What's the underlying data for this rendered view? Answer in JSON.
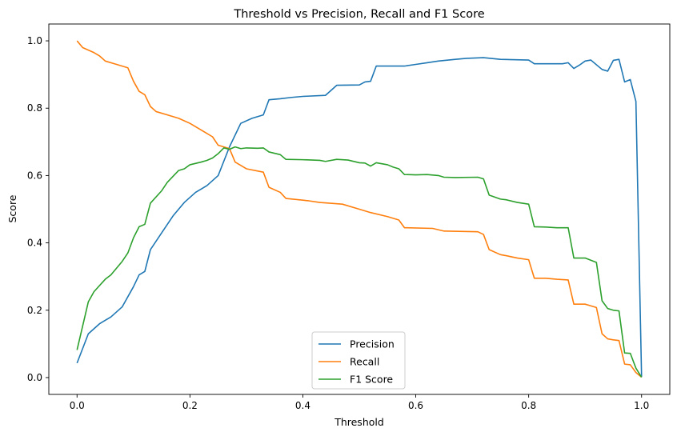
{
  "chart_data": {
    "type": "line",
    "title": "Threshold vs Precision, Recall and F1 Score",
    "xlabel": "Threshold",
    "ylabel": "Score",
    "xlim": [
      -0.05,
      1.05
    ],
    "ylim": [
      -0.05,
      1.05
    ],
    "xticks": [
      0.0,
      0.2,
      0.4,
      0.6,
      0.8,
      1.0
    ],
    "xtick_labels": [
      "0.0",
      "0.2",
      "0.4",
      "0.6",
      "0.8",
      "1.0"
    ],
    "yticks": [
      0.0,
      0.2,
      0.4,
      0.6,
      0.8,
      1.0
    ],
    "ytick_labels": [
      "0.0",
      "0.2",
      "0.4",
      "0.6",
      "0.8",
      "1.0"
    ],
    "grid": false,
    "legend_position": "lower-center",
    "series": [
      {
        "name": "Precision",
        "color": "#1f77b4",
        "points": [
          [
            0.0,
            0.043
          ],
          [
            0.02,
            0.13
          ],
          [
            0.04,
            0.16
          ],
          [
            0.06,
            0.18
          ],
          [
            0.08,
            0.21
          ],
          [
            0.1,
            0.27
          ],
          [
            0.11,
            0.305
          ],
          [
            0.12,
            0.315
          ],
          [
            0.13,
            0.38
          ],
          [
            0.15,
            0.43
          ],
          [
            0.17,
            0.48
          ],
          [
            0.19,
            0.52
          ],
          [
            0.21,
            0.55
          ],
          [
            0.23,
            0.57
          ],
          [
            0.25,
            0.6
          ],
          [
            0.27,
            0.685
          ],
          [
            0.29,
            0.755
          ],
          [
            0.31,
            0.77
          ],
          [
            0.33,
            0.78
          ],
          [
            0.34,
            0.825
          ],
          [
            0.36,
            0.828
          ],
          [
            0.38,
            0.832
          ],
          [
            0.4,
            0.835
          ],
          [
            0.44,
            0.838
          ],
          [
            0.46,
            0.868
          ],
          [
            0.5,
            0.869
          ],
          [
            0.51,
            0.878
          ],
          [
            0.52,
            0.88
          ],
          [
            0.53,
            0.925
          ],
          [
            0.58,
            0.925
          ],
          [
            0.6,
            0.93
          ],
          [
            0.62,
            0.935
          ],
          [
            0.64,
            0.94
          ],
          [
            0.67,
            0.945
          ],
          [
            0.69,
            0.948
          ],
          [
            0.72,
            0.95
          ],
          [
            0.75,
            0.945
          ],
          [
            0.8,
            0.943
          ],
          [
            0.81,
            0.932
          ],
          [
            0.86,
            0.932
          ],
          [
            0.87,
            0.935
          ],
          [
            0.88,
            0.918
          ],
          [
            0.89,
            0.928
          ],
          [
            0.9,
            0.94
          ],
          [
            0.91,
            0.943
          ],
          [
            0.93,
            0.915
          ],
          [
            0.94,
            0.91
          ],
          [
            0.95,
            0.942
          ],
          [
            0.96,
            0.945
          ],
          [
            0.97,
            0.878
          ],
          [
            0.98,
            0.885
          ],
          [
            0.99,
            0.82
          ],
          [
            1.0,
            0.002
          ]
        ]
      },
      {
        "name": "Recall",
        "color": "#ff7f0e",
        "points": [
          [
            0.0,
            1.0
          ],
          [
            0.01,
            0.98
          ],
          [
            0.03,
            0.965
          ],
          [
            0.04,
            0.955
          ],
          [
            0.05,
            0.94
          ],
          [
            0.07,
            0.93
          ],
          [
            0.09,
            0.92
          ],
          [
            0.1,
            0.88
          ],
          [
            0.11,
            0.85
          ],
          [
            0.12,
            0.84
          ],
          [
            0.13,
            0.805
          ],
          [
            0.14,
            0.79
          ],
          [
            0.16,
            0.78
          ],
          [
            0.18,
            0.77
          ],
          [
            0.2,
            0.755
          ],
          [
            0.22,
            0.735
          ],
          [
            0.24,
            0.715
          ],
          [
            0.25,
            0.69
          ],
          [
            0.27,
            0.68
          ],
          [
            0.28,
            0.64
          ],
          [
            0.3,
            0.62
          ],
          [
            0.33,
            0.61
          ],
          [
            0.34,
            0.565
          ],
          [
            0.36,
            0.55
          ],
          [
            0.37,
            0.532
          ],
          [
            0.41,
            0.525
          ],
          [
            0.43,
            0.52
          ],
          [
            0.47,
            0.515
          ],
          [
            0.5,
            0.5
          ],
          [
            0.52,
            0.49
          ],
          [
            0.55,
            0.478
          ],
          [
            0.57,
            0.468
          ],
          [
            0.58,
            0.445
          ],
          [
            0.63,
            0.443
          ],
          [
            0.65,
            0.435
          ],
          [
            0.71,
            0.433
          ],
          [
            0.72,
            0.425
          ],
          [
            0.73,
            0.38
          ],
          [
            0.75,
            0.365
          ],
          [
            0.76,
            0.362
          ],
          [
            0.78,
            0.355
          ],
          [
            0.8,
            0.35
          ],
          [
            0.81,
            0.295
          ],
          [
            0.83,
            0.295
          ],
          [
            0.85,
            0.292
          ],
          [
            0.87,
            0.29
          ],
          [
            0.88,
            0.218
          ],
          [
            0.9,
            0.218
          ],
          [
            0.92,
            0.208
          ],
          [
            0.93,
            0.13
          ],
          [
            0.94,
            0.115
          ],
          [
            0.95,
            0.112
          ],
          [
            0.96,
            0.11
          ],
          [
            0.97,
            0.04
          ],
          [
            0.98,
            0.038
          ],
          [
            0.99,
            0.015
          ],
          [
            1.0,
            0.001
          ]
        ]
      },
      {
        "name": "F1 Score",
        "color": "#2ca02c",
        "points": [
          [
            0.0,
            0.082
          ],
          [
            0.02,
            0.225
          ],
          [
            0.03,
            0.255
          ],
          [
            0.05,
            0.292
          ],
          [
            0.06,
            0.305
          ],
          [
            0.08,
            0.345
          ],
          [
            0.09,
            0.37
          ],
          [
            0.1,
            0.415
          ],
          [
            0.11,
            0.448
          ],
          [
            0.12,
            0.455
          ],
          [
            0.13,
            0.518
          ],
          [
            0.15,
            0.555
          ],
          [
            0.16,
            0.58
          ],
          [
            0.18,
            0.615
          ],
          [
            0.19,
            0.62
          ],
          [
            0.2,
            0.632
          ],
          [
            0.22,
            0.64
          ],
          [
            0.23,
            0.645
          ],
          [
            0.24,
            0.652
          ],
          [
            0.25,
            0.665
          ],
          [
            0.26,
            0.682
          ],
          [
            0.27,
            0.678
          ],
          [
            0.28,
            0.685
          ],
          [
            0.29,
            0.68
          ],
          [
            0.3,
            0.682
          ],
          [
            0.32,
            0.681
          ],
          [
            0.33,
            0.682
          ],
          [
            0.34,
            0.67
          ],
          [
            0.36,
            0.662
          ],
          [
            0.37,
            0.648
          ],
          [
            0.4,
            0.647
          ],
          [
            0.43,
            0.645
          ],
          [
            0.44,
            0.642
          ],
          [
            0.46,
            0.648
          ],
          [
            0.48,
            0.646
          ],
          [
            0.5,
            0.638
          ],
          [
            0.51,
            0.637
          ],
          [
            0.52,
            0.628
          ],
          [
            0.53,
            0.638
          ],
          [
            0.55,
            0.632
          ],
          [
            0.56,
            0.625
          ],
          [
            0.57,
            0.62
          ],
          [
            0.58,
            0.603
          ],
          [
            0.6,
            0.602
          ],
          [
            0.62,
            0.603
          ],
          [
            0.64,
            0.6
          ],
          [
            0.65,
            0.595
          ],
          [
            0.67,
            0.594
          ],
          [
            0.71,
            0.595
          ],
          [
            0.72,
            0.59
          ],
          [
            0.73,
            0.542
          ],
          [
            0.75,
            0.53
          ],
          [
            0.76,
            0.528
          ],
          [
            0.78,
            0.52
          ],
          [
            0.8,
            0.515
          ],
          [
            0.81,
            0.448
          ],
          [
            0.83,
            0.447
          ],
          [
            0.85,
            0.445
          ],
          [
            0.87,
            0.445
          ],
          [
            0.88,
            0.355
          ],
          [
            0.9,
            0.355
          ],
          [
            0.92,
            0.342
          ],
          [
            0.93,
            0.228
          ],
          [
            0.94,
            0.205
          ],
          [
            0.95,
            0.2
          ],
          [
            0.96,
            0.198
          ],
          [
            0.97,
            0.073
          ],
          [
            0.98,
            0.072
          ],
          [
            0.99,
            0.028
          ],
          [
            1.0,
            0.001
          ]
        ]
      }
    ]
  }
}
